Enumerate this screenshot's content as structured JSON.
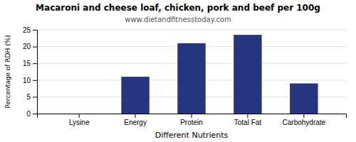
{
  "chart_data": {
    "type": "bar",
    "title": "Macaroni and cheese loaf, chicken, pork and beef per 100g",
    "subtitle": "www.dietandfitnesstoday.com",
    "xlabel": "Different Nutrients",
    "ylabel": "Percentage of RDH (%)",
    "categories": [
      "Lysine",
      "Energy",
      "Protein",
      "Total Fat",
      "Carbohydrate"
    ],
    "values": [
      0,
      11,
      21,
      23.5,
      9
    ],
    "color": "#253580",
    "ylim": [
      0,
      25
    ],
    "yticks": [
      0,
      5,
      10,
      15,
      20,
      25
    ],
    "grid": true
  }
}
